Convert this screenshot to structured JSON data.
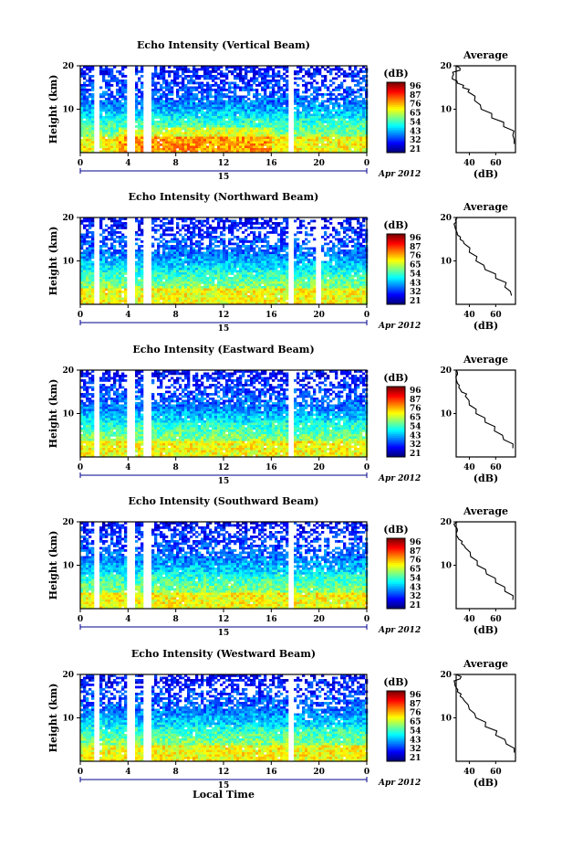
{
  "chart_data": [
    {
      "type": "heatmap",
      "title": "Echo Intensity (Vertical Beam)",
      "ylabel": "Height (km)",
      "ylim": [
        0,
        20
      ],
      "xlim": [
        0,
        24
      ],
      "x_ticks": [
        "0",
        "4",
        "8",
        "12",
        "16",
        "20",
        "0"
      ],
      "y_ticks": [
        "10",
        "20"
      ],
      "date_day": "15",
      "date_label": "Apr 2012",
      "colorbar": {
        "unit": "(dB)",
        "ticks": [
          "96",
          "87",
          "76",
          "65",
          "54",
          "43",
          "32",
          "21"
        ]
      },
      "gaps_hours": [
        1.3,
        4.1,
        5.5,
        17.6
      ],
      "profile": {
        "title": "Average",
        "xlabel": "(dB)",
        "x_ticks": [
          "40",
          "60"
        ],
        "y_ticks": [
          "10",
          "20"
        ],
        "xlim": [
          30,
          75
        ],
        "heights": [
          2,
          4,
          6,
          8,
          10,
          12,
          14,
          15,
          16,
          17,
          18,
          19,
          20
        ],
        "values": [
          74,
          73,
          66,
          57,
          49,
          44,
          39,
          35,
          31,
          27,
          28,
          33,
          30
        ]
      }
    },
    {
      "type": "heatmap",
      "title": "Echo Intensity (Northward Beam)",
      "ylabel": "Height (km)",
      "ylim": [
        0,
        20
      ],
      "xlim": [
        0,
        24
      ],
      "x_ticks": [
        "0",
        "4",
        "8",
        "12",
        "16",
        "20",
        "0"
      ],
      "y_ticks": [
        "10",
        "20"
      ],
      "date_day": "15",
      "date_label": "Apr 2012",
      "colorbar": {
        "unit": "(dB)",
        "ticks": [
          "96",
          "87",
          "76",
          "65",
          "54",
          "43",
          "32",
          "21"
        ]
      },
      "gaps_hours": [
        1.3,
        4.1,
        5.5,
        17.6,
        19.8
      ],
      "profile": {
        "title": "Average",
        "xlabel": "(dB)",
        "x_ticks": [
          "40",
          "60"
        ],
        "y_ticks": [
          "10",
          "20"
        ],
        "xlim": [
          30,
          75
        ],
        "heights": [
          2,
          4,
          6,
          8,
          10,
          12,
          14,
          15,
          16,
          17,
          18,
          19,
          20
        ],
        "values": [
          72,
          67,
          60,
          52,
          45,
          40,
          36,
          33,
          31,
          30,
          29,
          30,
          31
        ]
      }
    },
    {
      "type": "heatmap",
      "title": "Echo Intensity (Eastward Beam)",
      "ylabel": "Height (km)",
      "ylim": [
        0,
        20
      ],
      "xlim": [
        0,
        24
      ],
      "x_ticks": [
        "0",
        "4",
        "8",
        "12",
        "16",
        "20",
        "0"
      ],
      "y_ticks": [
        "10",
        "20"
      ],
      "date_day": "15",
      "date_label": "Apr 2012",
      "colorbar": {
        "unit": "(dB)",
        "ticks": [
          "96",
          "87",
          "76",
          "65",
          "54",
          "43",
          "32",
          "21"
        ]
      },
      "gaps_hours": [
        1.3,
        4.1,
        5.5,
        17.6
      ],
      "profile": {
        "title": "Average",
        "xlabel": "(dB)",
        "x_ticks": [
          "40",
          "60"
        ],
        "y_ticks": [
          "10",
          "20"
        ],
        "xlim": [
          30,
          75
        ],
        "heights": [
          2,
          4,
          6,
          8,
          10,
          12,
          14,
          15,
          16,
          17,
          18,
          19,
          20
        ],
        "values": [
          73,
          66,
          59,
          52,
          45,
          40,
          37,
          34,
          32,
          31,
          30,
          31,
          30
        ]
      }
    },
    {
      "type": "heatmap",
      "title": "Echo Intensity (Southward Beam)",
      "ylabel": "Height (km)",
      "ylim": [
        0,
        20
      ],
      "xlim": [
        0,
        24
      ],
      "x_ticks": [
        "0",
        "4",
        "8",
        "12",
        "16",
        "20",
        "0"
      ],
      "y_ticks": [
        "10",
        "20"
      ],
      "date_day": "15",
      "date_label": "Apr 2012",
      "colorbar": {
        "unit": "(dB)",
        "ticks": [
          "96",
          "87",
          "76",
          "65",
          "54",
          "43",
          "32",
          "21"
        ]
      },
      "gaps_hours": [
        1.3,
        4.1,
        5.5,
        17.6
      ],
      "profile": {
        "title": "Average",
        "xlabel": "(dB)",
        "x_ticks": [
          "40",
          "60"
        ],
        "y_ticks": [
          "10",
          "20"
        ],
        "xlim": [
          30,
          75
        ],
        "heights": [
          2,
          4,
          6,
          8,
          10,
          12,
          14,
          15,
          16,
          17,
          18,
          19,
          20
        ],
        "values": [
          73,
          67,
          60,
          53,
          46,
          41,
          37,
          34,
          32,
          30,
          31,
          29,
          31
        ]
      }
    },
    {
      "type": "heatmap",
      "title": "Echo Intensity (Westward Beam)",
      "ylabel": "Height (km)",
      "ylim": [
        0,
        20
      ],
      "xlim": [
        0,
        24
      ],
      "x_ticks": [
        "0",
        "4",
        "8",
        "12",
        "16",
        "20",
        "0"
      ],
      "y_ticks": [
        "10",
        "20"
      ],
      "date_day": "15",
      "date_label": "Apr 2012",
      "xlabel": "Local Time",
      "colorbar": {
        "unit": "(dB)",
        "ticks": [
          "96",
          "87",
          "76",
          "65",
          "54",
          "43",
          "32",
          "21"
        ]
      },
      "gaps_hours": [
        1.3,
        4.1,
        5.5,
        17.6
      ],
      "profile": {
        "title": "Average",
        "xlabel": "(dB)",
        "x_ticks": [
          "40",
          "60"
        ],
        "y_ticks": [
          "10",
          "20"
        ],
        "xlim": [
          30,
          75
        ],
        "heights": [
          2,
          4,
          6,
          8,
          10,
          12,
          14,
          15,
          16,
          17,
          18,
          19,
          20
        ],
        "values": [
          74,
          68,
          60,
          52,
          45,
          40,
          36,
          33,
          31,
          30,
          29,
          33,
          30
        ]
      }
    }
  ]
}
